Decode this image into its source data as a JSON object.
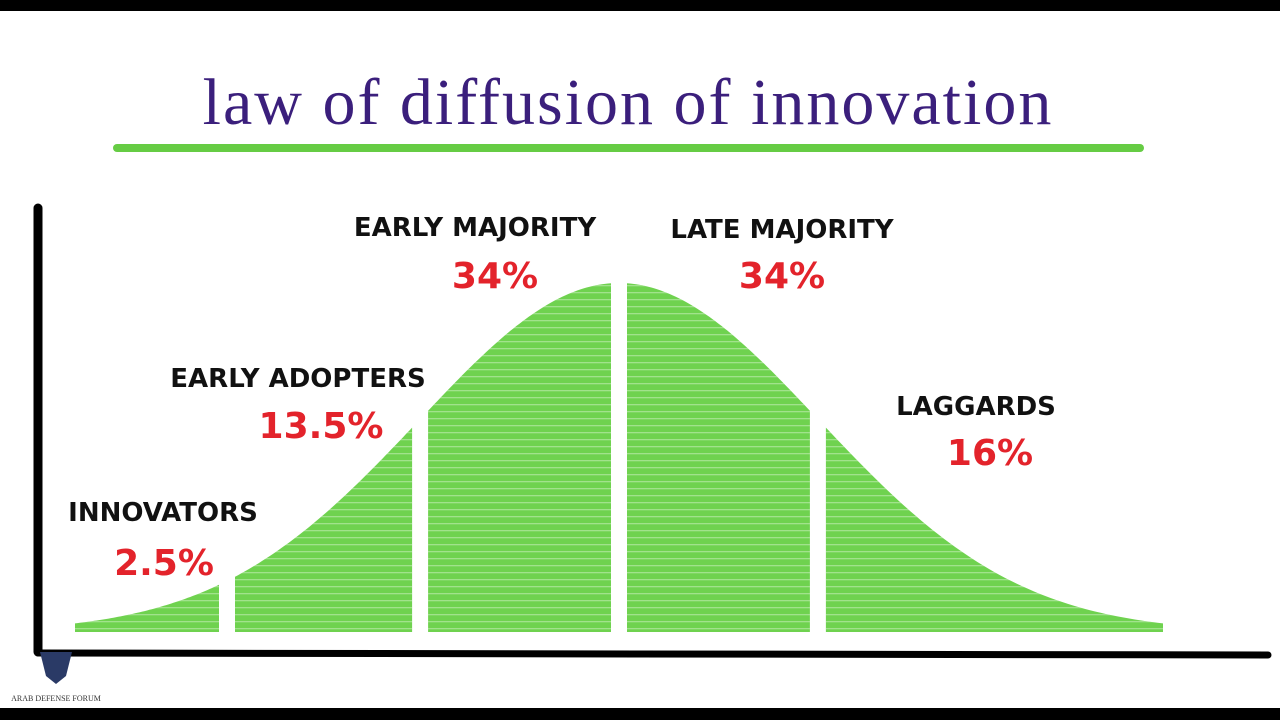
{
  "chart_data": {
    "type": "bell",
    "title": "law of diffusion of innovation",
    "categories": [
      "INNOVATORS",
      "EARLY ADOPTERS",
      "EARLY MAJORITY",
      "LATE MAJORITY",
      "LAGGARDS"
    ],
    "values": [
      2.5,
      13.5,
      34,
      34,
      16
    ],
    "value_labels": [
      "2.5%",
      "13.5%",
      "34%",
      "34%",
      "16%"
    ],
    "color": "#6fd24f"
  },
  "watermark": "ARAB DEFENSE FORUM"
}
